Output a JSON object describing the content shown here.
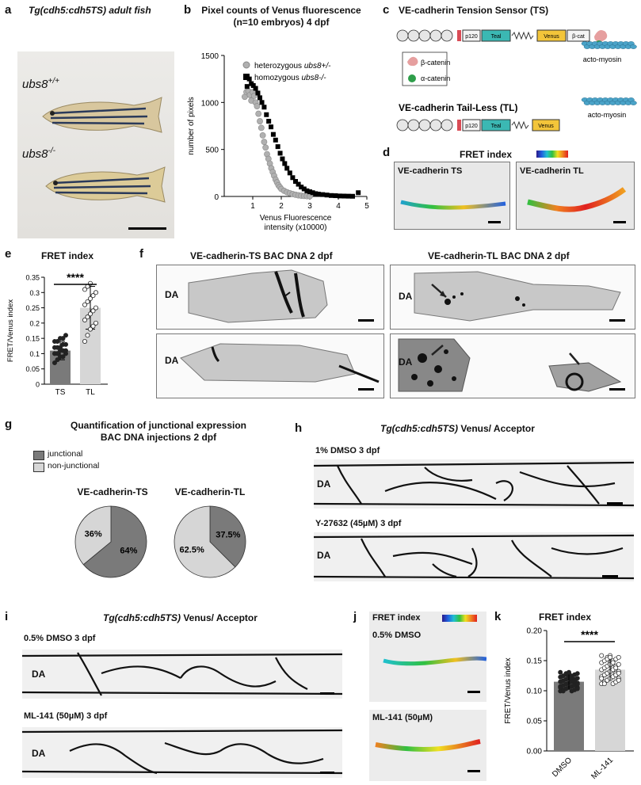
{
  "panels": {
    "a": {
      "letter": "a",
      "title": "Tg(cdh5:cdh5TS) adult fish",
      "label_top": "ubs8",
      "label_top_sup": "+/+",
      "label_bottom": "ubs8",
      "label_bottom_sup": "-/-"
    },
    "b": {
      "letter": "b",
      "title1": "Pixel counts of Venus fluorescence",
      "title2": "(n=10 embryos) 4 dpf"
    },
    "c": {
      "letter": "c",
      "ts_title": "VE-cadherin Tension Sensor (TS)",
      "tl_title": "VE-cadherin Tail-Less (TL)",
      "boxes": {
        "p120": "p120",
        "teal": "Teal",
        "venus": "Venus",
        "bcat": "β-cat"
      },
      "legend_bcat": "β-catenin",
      "legend_acat": "α-catenin",
      "actomyosin": "acto-myosin"
    },
    "d": {
      "letter": "d",
      "title": "FRET index",
      "left": "VE-cadherin TS",
      "right": "VE-cadherin TL"
    },
    "e": {
      "letter": "e",
      "title": "FRET index",
      "sig": "****"
    },
    "f": {
      "letter": "f",
      "left_title": "VE-cadherin-TS BAC DNA 2 dpf",
      "right_title": "VE-cadherin-TL BAC DNA 2 dpf",
      "da": "DA"
    },
    "g": {
      "letter": "g",
      "title1": "Quantification of junctional expression",
      "title2": "BAC DNA injections 2 dpf",
      "legend_j": "junctional",
      "legend_nj": "non-junctional",
      "ts_title": "VE-cadherin-TS",
      "tl_title": "VE-cadherin-TL",
      "ts_j": "64%",
      "ts_nj": "36%",
      "tl_j": "37.5%",
      "tl_nj": "62.5%"
    },
    "h": {
      "letter": "h",
      "title_italic": "Tg(cdh5:cdh5TS)",
      "title_rest": " Venus/ Acceptor",
      "top": "1% DMSO 3 dpf",
      "bottom": "Y-27632 (45µM) 3 dpf",
      "da": "DA"
    },
    "i": {
      "letter": "i",
      "title_italic": "Tg(cdh5:cdh5TS)",
      "title_rest": " Venus/ Acceptor",
      "top": "0.5% DMSO 3 dpf",
      "bottom": "ML-141 (50µM) 3 dpf",
      "da": "DA"
    },
    "j": {
      "letter": "j",
      "title": "FRET index",
      "top": "0.5% DMSO",
      "bottom": "ML-141 (50µM)"
    },
    "k": {
      "letter": "k",
      "title": "FRET index",
      "sig": "****"
    }
  },
  "chart_data": [
    {
      "panel": "b",
      "type": "scatter",
      "title": "Pixel counts of Venus fluorescence (n=10 embryos) 4 dpf",
      "xlabel": "Venus Fluorescence intensity (x10000)",
      "ylabel": "number of pixels",
      "xlim": [
        0,
        5
      ],
      "ylim": [
        0,
        1500
      ],
      "xticks": [
        1,
        2,
        3,
        4,
        5
      ],
      "yticks": [
        0,
        500,
        1000,
        1500
      ],
      "legend_position": "top-right",
      "series": [
        {
          "name": "heterozygous ubs8+/-",
          "marker": "circle",
          "color": "#b0b0b0",
          "points": [
            [
              0.72,
              1060
            ],
            [
              0.78,
              1110
            ],
            [
              0.85,
              1120
            ],
            [
              0.9,
              1080
            ],
            [
              0.95,
              1020
            ],
            [
              1.0,
              1110
            ],
            [
              1.05,
              1070
            ],
            [
              1.1,
              1000
            ],
            [
              1.15,
              960
            ],
            [
              1.2,
              880
            ],
            [
              1.25,
              800
            ],
            [
              1.3,
              730
            ],
            [
              1.35,
              650
            ],
            [
              1.4,
              580
            ],
            [
              1.45,
              520
            ],
            [
              1.5,
              450
            ],
            [
              1.55,
              400
            ],
            [
              1.6,
              350
            ],
            [
              1.65,
              300
            ],
            [
              1.7,
              260
            ],
            [
              1.75,
              220
            ],
            [
              1.8,
              180
            ],
            [
              1.85,
              150
            ],
            [
              1.9,
              120
            ],
            [
              1.95,
              100
            ],
            [
              2.0,
              80
            ],
            [
              2.1,
              60
            ],
            [
              2.2,
              45
            ],
            [
              2.3,
              35
            ],
            [
              2.4,
              25
            ],
            [
              2.5,
              18
            ],
            [
              2.6,
              12
            ],
            [
              2.7,
              8
            ],
            [
              2.8,
              5
            ],
            [
              2.9,
              3
            ],
            [
              3.0,
              2
            ]
          ]
        },
        {
          "name": "homozygous ubs8-/-",
          "marker": "square",
          "color": "#000000",
          "points": [
            [
              0.8,
              1170
            ],
            [
              0.88,
              1250
            ],
            [
              0.95,
              1200
            ],
            [
              1.02,
              1180
            ],
            [
              1.1,
              1150
            ],
            [
              1.18,
              1100
            ],
            [
              1.25,
              1050
            ],
            [
              1.32,
              1000
            ],
            [
              1.4,
              950
            ],
            [
              1.48,
              870
            ],
            [
              1.56,
              800
            ],
            [
              1.64,
              740
            ],
            [
              1.72,
              660
            ],
            [
              1.8,
              600
            ],
            [
              1.88,
              530
            ],
            [
              1.96,
              460
            ],
            [
              2.04,
              400
            ],
            [
              2.12,
              350
            ],
            [
              2.2,
              300
            ],
            [
              2.3,
              250
            ],
            [
              2.4,
              200
            ],
            [
              2.5,
              160
            ],
            [
              2.6,
              130
            ],
            [
              2.7,
              100
            ],
            [
              2.8,
              80
            ],
            [
              2.9,
              60
            ],
            [
              3.0,
              50
            ],
            [
              3.1,
              40
            ],
            [
              3.2,
              30
            ],
            [
              3.3,
              25
            ],
            [
              3.45,
              20
            ],
            [
              3.6,
              15
            ],
            [
              3.75,
              10
            ],
            [
              3.9,
              8
            ],
            [
              4.05,
              5
            ],
            [
              4.2,
              4
            ],
            [
              4.35,
              3
            ],
            [
              4.5,
              2
            ],
            [
              4.7,
              40
            ]
          ]
        }
      ]
    },
    {
      "panel": "e",
      "type": "bar",
      "title": "FRET index",
      "ylabel": "FRET/Venus index",
      "categories": [
        "TS",
        "TL"
      ],
      "values": [
        0.11,
        0.25
      ],
      "sd": [
        0.03,
        0.07
      ],
      "ylim": [
        0,
        0.35
      ],
      "yticks": [
        0,
        0.05,
        0.1,
        0.15,
        0.2,
        0.25,
        0.3,
        0.35
      ],
      "colors": [
        "#7a7a7a",
        "#d6d6d6"
      ],
      "points": [
        [
          0.07,
          0.08,
          0.09,
          0.09,
          0.1,
          0.1,
          0.1,
          0.11,
          0.11,
          0.11,
          0.12,
          0.12,
          0.12,
          0.13,
          0.13,
          0.14,
          0.14,
          0.15,
          0.15,
          0.16
        ],
        [
          0.14,
          0.16,
          0.18,
          0.19,
          0.2,
          0.21,
          0.22,
          0.23,
          0.24,
          0.25,
          0.26,
          0.27,
          0.28,
          0.29,
          0.3,
          0.31,
          0.32,
          0.33
        ]
      ]
    },
    {
      "panel": "g",
      "type": "pie",
      "charts": [
        {
          "name": "VE-cadherin-TS",
          "labels": [
            "junctional",
            "non-junctional"
          ],
          "values": [
            64,
            36
          ]
        },
        {
          "name": "VE-cadherin-TL",
          "labels": [
            "junctional",
            "non-junctional"
          ],
          "values": [
            37.5,
            62.5
          ]
        }
      ],
      "colors": [
        "#7a7a7a",
        "#d6d6d6"
      ]
    },
    {
      "panel": "k",
      "type": "bar",
      "title": "FRET index",
      "ylabel": "FRET/Venus index",
      "categories": [
        "DMSO",
        "ML-141"
      ],
      "values": [
        0.115,
        0.135
      ],
      "sd": [
        0.012,
        0.018
      ],
      "ylim": [
        0,
        0.2
      ],
      "yticks": [
        0,
        0.05,
        0.1,
        0.15,
        0.2
      ],
      "colors": [
        "#7a7a7a",
        "#d6d6d6"
      ]
    }
  ],
  "colors": {
    "teal": "#3bb8b3",
    "venus": "#f3c53a",
    "junctional": "#7a7a7a",
    "nonjunctional": "#d6d6d6",
    "bcat": "#e69f9f",
    "acat": "#2e9e4a",
    "actin": "#4aa3c8"
  }
}
